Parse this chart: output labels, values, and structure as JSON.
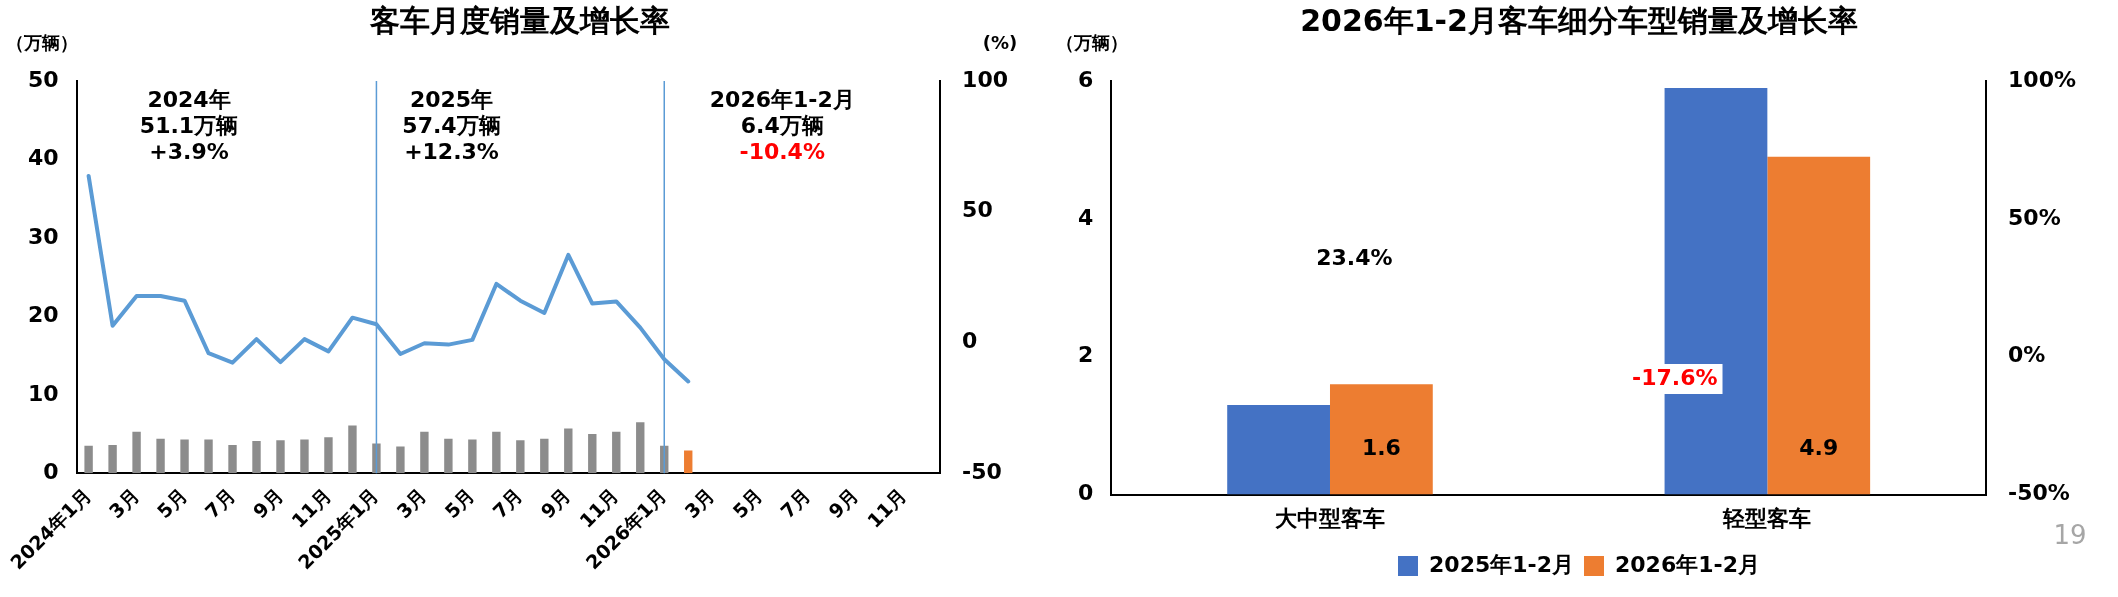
{
  "chart_data": [
    {
      "type": "bar",
      "title": "客车月度销量及增长率",
      "ylabel": "（万辆）",
      "y2label": "(%)",
      "categories": [
        "2024年1月",
        null,
        "3月",
        null,
        "5月",
        null,
        "7月",
        null,
        "9月",
        null,
        "11月",
        null,
        "2025年1月",
        null,
        "3月",
        null,
        "5月",
        null,
        "7月",
        null,
        "9月",
        null,
        "11月",
        null,
        "2026年1月",
        null,
        "3月",
        null,
        "5月",
        null,
        "7月",
        null,
        "9月",
        null,
        "11月",
        null
      ],
      "series": [
        {
          "type": "bar",
          "colors": [
            "#8c8c8c",
            "#8c8c8c",
            "#8c8c8c",
            "#8c8c8c",
            "#8c8c8c",
            "#8c8c8c",
            "#8c8c8c",
            "#8c8c8c",
            "#8c8c8c",
            "#8c8c8c",
            "#8c8c8c",
            "#8c8c8c",
            "#8c8c8c",
            "#8c8c8c",
            "#8c8c8c",
            "#8c8c8c",
            "#8c8c8c",
            "#8c8c8c",
            "#8c8c8c",
            "#8c8c8c",
            "#8c8c8c",
            "#8c8c8c",
            "#8c8c8c",
            "#8c8c8c",
            "#8c8c8c",
            "#ed7d31",
            "#8c8c8c",
            "#8c8c8c",
            "#8c8c8c",
            "#8c8c8c",
            "#8c8c8c",
            "#8c8c8c",
            "#8c8c8c",
            "#8c8c8c",
            "#8c8c8c",
            "#8c8c8c"
          ],
          "values": [
            3.5,
            3.6,
            5.3,
            4.4,
            4.3,
            4.3,
            3.6,
            4.1,
            4.2,
            4.3,
            4.6,
            6.1,
            3.8,
            3.4,
            5.3,
            4.4,
            4.3,
            5.3,
            4.2,
            4.4,
            5.7,
            5.0,
            5.3,
            6.5,
            3.5,
            2.9,
            null,
            null,
            null,
            null,
            null,
            null,
            null,
            null,
            null,
            null
          ]
        },
        {
          "type": "line",
          "axis": "y2",
          "color": "#5b9bd5",
          "values": [
            63.7,
            6.4,
            17.8,
            17.8,
            16.0,
            -4.1,
            -7.7,
            1.3,
            -7.5,
            1.3,
            -3.4,
            9.5,
            7.0,
            -4.4,
            -0.3,
            -0.8,
            1.0,
            22.4,
            16.0,
            11.3,
            33.5,
            14.9,
            15.7,
            5.7,
            -6.4,
            -14.9,
            null,
            null,
            null,
            null,
            null,
            null,
            null,
            null,
            null,
            null
          ]
        }
      ],
      "marker": "none",
      "ylim": [
        0,
        50
      ],
      "yticks": [
        0,
        10,
        20,
        30,
        40,
        50
      ],
      "y2lim": [
        -50,
        100
      ],
      "y2ticks": [
        -50,
        0,
        50,
        100
      ],
      "ref_lines": [
        {
          "axis": "x",
          "value": "2025年1月",
          "color": "#5b9bd5"
        },
        {
          "axis": "x",
          "value": "2026年1月",
          "color": "#5b9bd5"
        }
      ],
      "annotations": [
        "2024年\n51.1万辆\n+3.9%",
        "2025年\n57.4万辆\n+12.3%",
        "2026年1-2月\n6.4万辆\n-10.4%"
      ],
      "grid": false,
      "legend": false
    },
    {
      "type": "bar",
      "title": "2026年1-2月客车细分车型销量及增长率",
      "ylabel": "（万辆）",
      "categories": [
        "大中型客车",
        "轻型客车"
      ],
      "series": [
        {
          "name": "2025年1-2月",
          "color": "#4472c4",
          "values": [
            1.3,
            5.9
          ]
        },
        {
          "name": "2026年1-2月",
          "color": "#ed7d31",
          "values": [
            1.6,
            4.9
          ],
          "value_labels": [
            "1.6",
            "4.9"
          ]
        }
      ],
      "ylim": [
        0,
        6
      ],
      "yticks": [
        0,
        2,
        4,
        6
      ],
      "y2lim": [
        -50,
        100
      ],
      "y2ticks": [
        {
          "value": -50,
          "label": "-50%"
        },
        {
          "value": 0,
          "label": "0%"
        },
        {
          "value": 50,
          "label": "50%"
        },
        {
          "value": 100,
          "label": "100%"
        }
      ],
      "annotations": [
        "23.4%",
        "-17.6%",
        "19"
      ],
      "grid": false,
      "legend": "bottom"
    }
  ]
}
